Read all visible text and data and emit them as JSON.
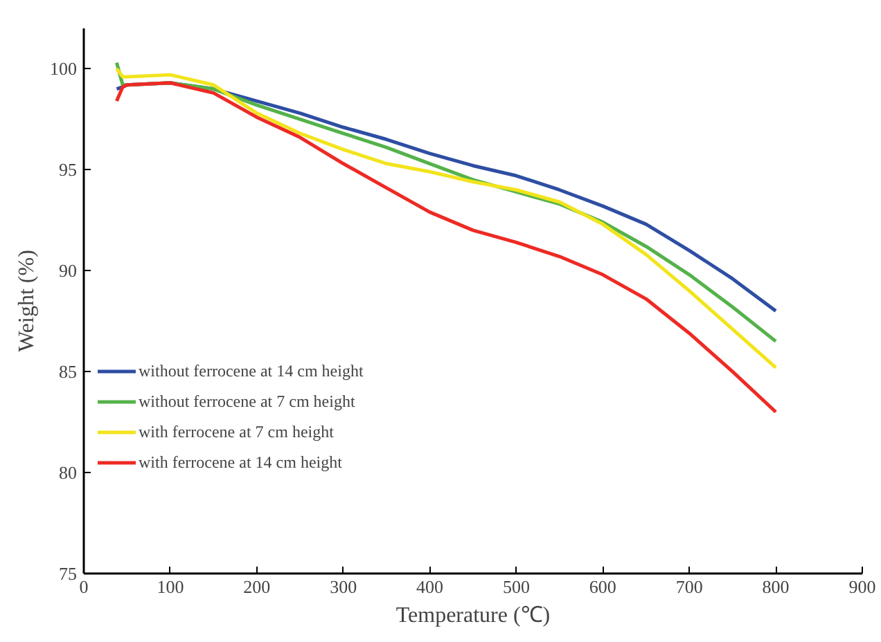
{
  "chart_data": {
    "type": "line",
    "xlabel": "Temperature (℃)",
    "ylabel": "Weight (%)",
    "xlim": [
      0,
      900
    ],
    "ylim": [
      75,
      102
    ],
    "xticks": [
      0,
      100,
      200,
      300,
      400,
      500,
      600,
      700,
      800,
      900
    ],
    "yticks": [
      75,
      80,
      85,
      90,
      95,
      100
    ],
    "grid": false,
    "legend": "left",
    "line_style": "solid",
    "x": [
      38,
      45,
      50,
      100,
      150,
      200,
      250,
      300,
      350,
      400,
      450,
      500,
      550,
      600,
      650,
      700,
      750,
      800
    ],
    "series": [
      {
        "name": "without ferrocene at 14 cm height",
        "color": "#2e4ea3",
        "values": [
          99.0,
          99.1,
          99.2,
          99.3,
          99.0,
          98.4,
          97.8,
          97.1,
          96.5,
          95.8,
          95.2,
          94.7,
          94.0,
          93.2,
          92.3,
          91.0,
          89.6,
          88.0
        ]
      },
      {
        "name": "without ferrocene at 7 cm height",
        "color": "#54b24a",
        "values": [
          100.3,
          99.2,
          99.2,
          99.3,
          99.0,
          98.2,
          97.5,
          96.8,
          96.1,
          95.3,
          94.5,
          93.9,
          93.3,
          92.4,
          91.2,
          89.8,
          88.2,
          86.5
        ]
      },
      {
        "name": "with ferrocene at 7 cm height",
        "color": "#f2e41c",
        "values": [
          100.0,
          99.6,
          99.6,
          99.7,
          99.2,
          97.8,
          96.8,
          96.0,
          95.3,
          94.9,
          94.4,
          94.0,
          93.4,
          92.3,
          90.8,
          89.0,
          87.1,
          85.2
        ]
      },
      {
        "name": "with ferrocene at 14 cm height",
        "color": "#ee2a24",
        "values": [
          98.4,
          99.1,
          99.2,
          99.3,
          98.8,
          97.6,
          96.6,
          95.3,
          94.1,
          92.9,
          92.0,
          91.4,
          90.7,
          89.8,
          88.6,
          86.9,
          85.0,
          83.0
        ]
      }
    ]
  }
}
